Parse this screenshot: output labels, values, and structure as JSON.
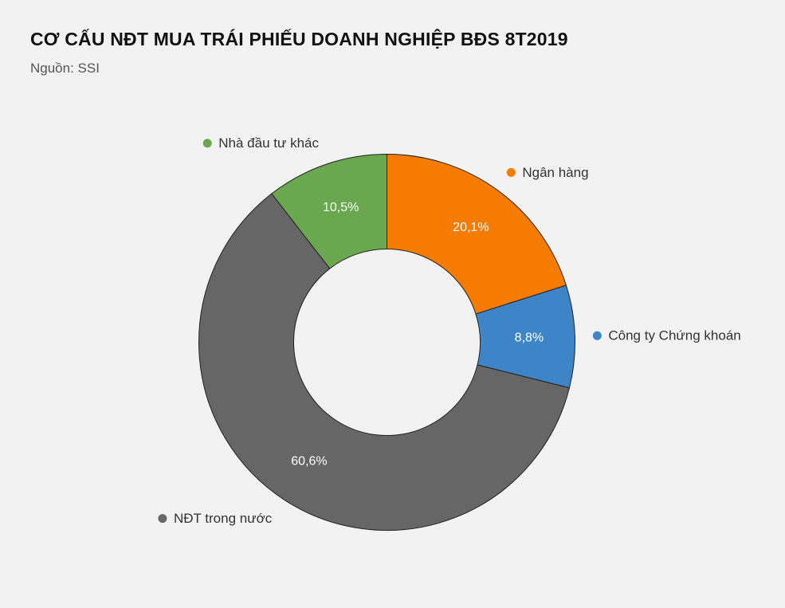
{
  "header": {
    "title": "CƠ CẤU NĐT MUA TRÁI PHIẾU DOANH NGHIỆP BĐS 8T2019",
    "subtitle": "Nguồn: SSI"
  },
  "chart_data": {
    "type": "pie",
    "variant": "donut",
    "title": "CƠ CẤU NĐT MUA TRÁI PHIẾU DOANH NGHIỆP BĐS 8T2019",
    "subtitle": "Nguồn: SSI",
    "slices": [
      {
        "name": "Ngân hàng",
        "value": 20.1,
        "label": "20,1%",
        "color": "#f57c00"
      },
      {
        "name": "Công ty Chứng khoán",
        "value": 8.8,
        "label": "8,8%",
        "color": "#3d85c6"
      },
      {
        "name": "NĐT trong nước",
        "value": 60.6,
        "label": "60,6%",
        "color": "#666666"
      },
      {
        "name": "Nhà đầu tư khác",
        "value": 10.5,
        "label": "10,5%",
        "color": "#6aa84f"
      }
    ],
    "start": "12 o'clock",
    "direction": "clockwise",
    "legend": "labels outside slices"
  }
}
